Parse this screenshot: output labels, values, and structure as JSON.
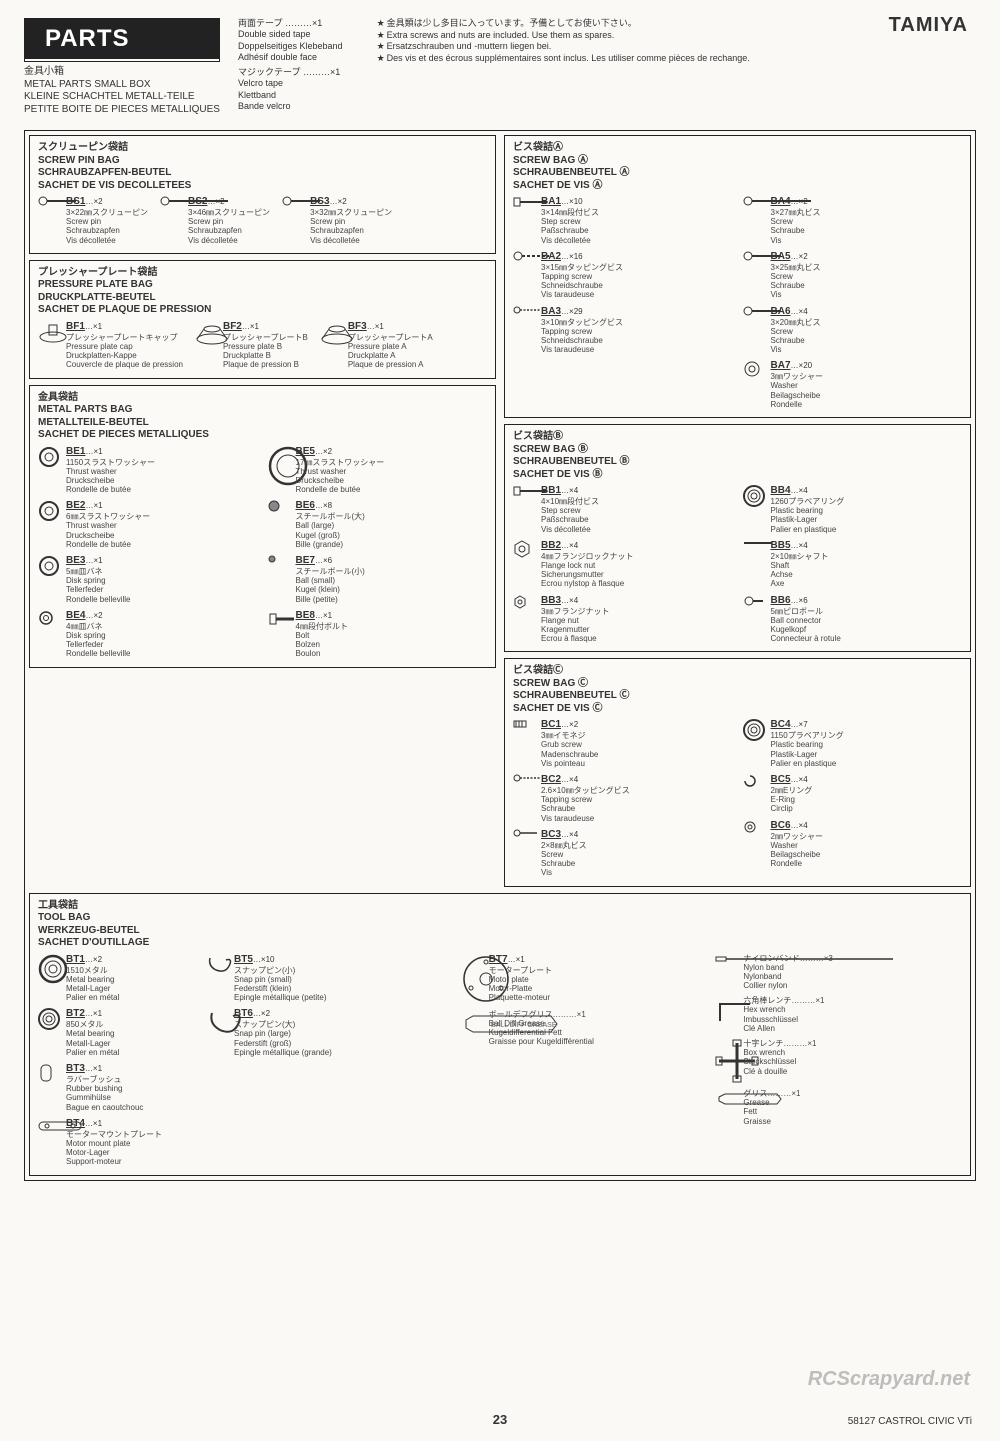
{
  "brand": "TAMIYA",
  "parts_badge": "PARTS",
  "tape": [
    {
      "jp": "両面テープ ………×1",
      "lines": [
        "Double sided tape",
        "Doppelseitiges Klebeband",
        "Adhésif double face"
      ]
    },
    {
      "jp": "マジックテープ ………×1",
      "lines": [
        "Velcro tape",
        "Klettband",
        "Bande velcro"
      ]
    }
  ],
  "notes": [
    "金具類は少し多目に入っています。予備としてお使い下さい。",
    "Extra screws and nuts are included. Use them as spares.",
    "Ersatzschrauben und -muttern liegen bei.",
    "Des vis et des écrous supplémentaires sont inclus. Les utiliser comme pièces de rechange."
  ],
  "small_box": {
    "jp": "金具小箱",
    "lines": [
      "METAL PARTS SMALL BOX",
      "KLEINE SCHACHTEL METALL-TEILE",
      "PETITE BOITE DE PIECES METALLIQUES"
    ]
  },
  "panels": {
    "screwpin": {
      "title_jp": "スクリューピン袋詰",
      "titles": [
        "SCREW PIN BAG",
        "SCHRAUBZAPFEN-BEUTEL",
        "SACHET DE VIS DECOLLETEES"
      ],
      "parts": [
        {
          "code": "BS1",
          "qty": "×2",
          "jp": "3×22㎜スクリューピン",
          "lines": [
            "Screw pin",
            "Schraubzapfen",
            "Vis décolletée"
          ],
          "icon": "screw"
        },
        {
          "code": "BS2",
          "qty": "×2",
          "jp": "3×46㎜スクリューピン",
          "lines": [
            "Screw pin",
            "Schraubzapfen",
            "Vis décolletée"
          ],
          "icon": "screw-long"
        },
        {
          "code": "BS3",
          "qty": "×2",
          "jp": "3×32㎜スクリューピン",
          "lines": [
            "Screw pin",
            "Schraubzapfen",
            "Vis décolletée"
          ],
          "icon": "screw"
        }
      ]
    },
    "pressure": {
      "title_jp": "プレッシャープレート袋詰",
      "titles": [
        "PRESSURE PLATE BAG",
        "DRUCKPLATTE-BEUTEL",
        "SACHET DE PLAQUE DE PRESSION"
      ],
      "parts": [
        {
          "code": "BF1",
          "qty": "×1",
          "jp": "プレッシャープレートキャップ",
          "lines": [
            "Pressure plate cap",
            "Druckplatten-Kappe",
            "Couvercle de plaque de pression"
          ],
          "icon": "cap"
        },
        {
          "code": "BF2",
          "qty": "×1",
          "jp": "プレッシャープレートB",
          "lines": [
            "Pressure plate B",
            "Druckplatte B",
            "Plaque de pression B"
          ],
          "icon": "plate"
        },
        {
          "code": "BF3",
          "qty": "×1",
          "jp": "プレッシャープレートA",
          "lines": [
            "Pressure plate A",
            "Druckplatte A",
            "Plaque de pression A"
          ],
          "icon": "plate"
        }
      ]
    },
    "metal": {
      "title_jp": "金具袋詰",
      "titles": [
        "METAL PARTS BAG",
        "METALLTEILE-BEUTEL",
        "SACHET DE PIECES METALLIQUES"
      ],
      "parts_left": [
        {
          "code": "BE1",
          "qty": "×1",
          "jp": "1150スラストワッシャー",
          "lines": [
            "Thrust washer",
            "Druckscheibe",
            "Rondelle de butée"
          ],
          "icon": "ring"
        },
        {
          "code": "BE2",
          "qty": "×1",
          "jp": "6㎜スラストワッシャー",
          "lines": [
            "Thrust washer",
            "Druckscheibe",
            "Rondelle de butée"
          ],
          "icon": "ring"
        },
        {
          "code": "BE3",
          "qty": "×1",
          "jp": "5㎜皿バネ",
          "lines": [
            "Disk spring",
            "Tellerfeder",
            "Rondelle belleville"
          ],
          "icon": "ring"
        },
        {
          "code": "BE4",
          "qty": "×2",
          "jp": "4㎜皿バネ",
          "lines": [
            "Disk spring",
            "Tellerfeder",
            "Rondelle belleville"
          ],
          "icon": "ring-small"
        }
      ],
      "parts_right": [
        {
          "code": "BE5",
          "qty": "×2",
          "jp": "17㎜スラストワッシャー",
          "lines": [
            "Thrust washer",
            "Druckscheibe",
            "Rondelle de butée"
          ],
          "icon": "ring-big"
        },
        {
          "code": "BE6",
          "qty": "×8",
          "jp": "スチールボール(大)",
          "lines": [
            "Ball (large)",
            "Kugel (groß)",
            "Bille (grande)"
          ],
          "icon": "ball"
        },
        {
          "code": "BE7",
          "qty": "×6",
          "jp": "スチールボール(小)",
          "lines": [
            "Ball (small)",
            "Kugel (klein)",
            "Bille (petite)"
          ],
          "icon": "ball-small"
        },
        {
          "code": "BE8",
          "qty": "×1",
          "jp": "4㎜段付ボルト",
          "lines": [
            "Bolt",
            "Bolzen",
            "Boulon"
          ],
          "icon": "bolt"
        }
      ]
    },
    "screwA": {
      "title_jp": "ビス袋詰Ⓐ",
      "titles": [
        "SCREW BAG Ⓐ",
        "SCHRAUBENBEUTEL Ⓐ",
        "SACHET DE VIS Ⓐ"
      ],
      "left": [
        {
          "code": "BA1",
          "qty": "×10",
          "jp": "3×14㎜段付ビス",
          "lines": [
            "Step screw",
            "Paßschraube",
            "Vis décolletée"
          ],
          "icon": "stepscrew"
        },
        {
          "code": "BA2",
          "qty": "×16",
          "jp": "3×15㎜タッピングビス",
          "lines": [
            "Tapping screw",
            "Schneidschraube",
            "Vis taraudeuse"
          ],
          "icon": "tapscrew"
        },
        {
          "code": "BA3",
          "qty": "×29",
          "jp": "3×10㎜タッピングビス",
          "lines": [
            "Tapping screw",
            "Schneidschraube",
            "Vis taraudeuse"
          ],
          "icon": "tapscrew-s"
        }
      ],
      "right": [
        {
          "code": "BA4",
          "qty": "×2",
          "jp": "3×27㎜丸ビス",
          "lines": [
            "Screw",
            "Schraube",
            "Vis"
          ],
          "icon": "screw-long"
        },
        {
          "code": "BA5",
          "qty": "×2",
          "jp": "3×25㎜丸ビス",
          "lines": [
            "Screw",
            "Schraube",
            "Vis"
          ],
          "icon": "screw"
        },
        {
          "code": "BA6",
          "qty": "×4",
          "jp": "3×20㎜丸ビス",
          "lines": [
            "Screw",
            "Schraube",
            "Vis"
          ],
          "icon": "screw"
        },
        {
          "code": "BA7",
          "qty": "×20",
          "jp": "3㎜ワッシャー",
          "lines": [
            "Washer",
            "Beilagscheibe",
            "Rondelle"
          ],
          "icon": "washer"
        }
      ]
    },
    "screwB": {
      "title_jp": "ビス袋詰Ⓑ",
      "titles": [
        "SCREW BAG Ⓑ",
        "SCHRAUBENBEUTEL Ⓑ",
        "SACHET DE VIS Ⓑ"
      ],
      "left": [
        {
          "code": "BB1",
          "qty": "×4",
          "jp": "4×10㎜段付ビス",
          "lines": [
            "Step screw",
            "Paßschraube",
            "Vis décolletée"
          ],
          "icon": "stepscrew"
        },
        {
          "code": "BB2",
          "qty": "×4",
          "jp": "4㎜フランジロックナット",
          "lines": [
            "Flange lock nut",
            "Sicherungsmutter",
            "Ecrou nylstop à flasque"
          ],
          "icon": "nut"
        },
        {
          "code": "BB3",
          "qty": "×4",
          "jp": "3㎜フランジナット",
          "lines": [
            "Flange nut",
            "Kragenmutter",
            "Ecrou à flasque"
          ],
          "icon": "nut-s"
        }
      ],
      "right": [
        {
          "code": "BB4",
          "qty": "×4",
          "jp": "1260プラベアリング",
          "lines": [
            "Plastic bearing",
            "Plastik-Lager",
            "Palier en plastique"
          ],
          "icon": "bearing"
        },
        {
          "code": "BB5",
          "qty": "×4",
          "jp": "2×10㎜シャフト",
          "lines": [
            "Shaft",
            "Achse",
            "Axe"
          ],
          "icon": "shaft"
        },
        {
          "code": "BB6",
          "qty": "×6",
          "jp": "5㎜ピロボール",
          "lines": [
            "Ball connector",
            "Kugelkopf",
            "Connecteur à rotule"
          ],
          "icon": "ballconn"
        }
      ]
    },
    "screwC": {
      "title_jp": "ビス袋詰Ⓒ",
      "titles": [
        "SCREW BAG Ⓒ",
        "SCHRAUBENBEUTEL Ⓒ",
        "SACHET DE VIS Ⓒ"
      ],
      "left": [
        {
          "code": "BC1",
          "qty": "×2",
          "jp": "3㎜イモネジ",
          "lines": [
            "Grub screw",
            "Madenschraube",
            "Vis pointeau"
          ],
          "icon": "grub"
        },
        {
          "code": "BC2",
          "qty": "×4",
          "jp": "2.6×10㎜タッピングビス",
          "lines": [
            "Tapping screw",
            "Schraube",
            "Vis taraudeuse"
          ],
          "icon": "tapscrew-s"
        },
        {
          "code": "BC3",
          "qty": "×4",
          "jp": "2×8㎜丸ビス",
          "lines": [
            "Screw",
            "Schraube",
            "Vis"
          ],
          "icon": "screw-s"
        }
      ],
      "right": [
        {
          "code": "BC4",
          "qty": "×7",
          "jp": "1150プラベアリング",
          "lines": [
            "Plastic bearing",
            "Plastik-Lager",
            "Palier en plastique"
          ],
          "icon": "bearing"
        },
        {
          "code": "BC5",
          "qty": "×4",
          "jp": "2㎜Eリング",
          "lines": [
            "E-Ring",
            "Circlip"
          ],
          "icon": "ering"
        },
        {
          "code": "BC6",
          "qty": "×4",
          "jp": "2㎜ワッシャー",
          "lines": [
            "Washer",
            "Beilagscheibe",
            "Rondelle"
          ],
          "icon": "washer-s"
        }
      ]
    }
  },
  "tool": {
    "title_jp": "工具袋詰",
    "titles": [
      "TOOL BAG",
      "WERKZEUG-BEUTEL",
      "SACHET D'OUTILLAGE"
    ],
    "col1": [
      {
        "code": "BT1",
        "qty": "×2",
        "jp": "1510メタル",
        "lines": [
          "Metal bearing",
          "Metall-Lager",
          "Palier en métal"
        ],
        "icon": "bearing-big"
      },
      {
        "code": "BT2",
        "qty": "×1",
        "jp": "850メタル",
        "lines": [
          "Metal bearing",
          "Metall-Lager",
          "Palier en métal"
        ],
        "icon": "bearing"
      },
      {
        "code": "BT3",
        "qty": "×1",
        "jp": "ラバーブッシュ",
        "lines": [
          "Rubber bushing",
          "Gummihülse",
          "Bague en caoutchouc"
        ],
        "icon": "bushing"
      },
      {
        "code": "BT4",
        "qty": "×1",
        "jp": "モーターマウントプレート",
        "lines": [
          "Motor mount plate",
          "Motor-Lager",
          "Support-moteur"
        ],
        "icon": "mount"
      }
    ],
    "col2": [
      {
        "code": "BT5",
        "qty": "×10",
        "jp": "スナップピン(小)",
        "lines": [
          "Snap pin (small)",
          "Federstift (klein)",
          "Epingle métallique (petite)"
        ],
        "icon": "snappin"
      },
      {
        "code": "BT6",
        "qty": "×2",
        "jp": "スナップピン(大)",
        "lines": [
          "Snap pin (large)",
          "Federstift (groß)",
          "Epingle métallique (grande)"
        ],
        "icon": "snappin-big"
      }
    ],
    "col3": [
      {
        "code": "BT7",
        "qty": "×1",
        "jp": "モータープレート",
        "lines": [
          "Motor plate",
          "Motor-Platte",
          "Plaquette-moteur"
        ],
        "icon": "motorplate"
      },
      {
        "code": "",
        "qty": "",
        "jp": "ボールデフグリス………×1",
        "lines": [
          "Ball Diff Grease",
          "Kugeldifferential Fett",
          "Graisse pour Kugeldifférential"
        ],
        "icon": "tube",
        "tube_label": "BALL DIFF GREASE"
      }
    ],
    "col4": [
      {
        "code": "",
        "qty": "",
        "jp": "ナイロンバンド………×3",
        "lines": [
          "Nylon band",
          "Nylonband",
          "Collier nylon"
        ],
        "icon": "ziptie"
      },
      {
        "code": "",
        "qty": "",
        "jp": "六角棒レンチ………×1",
        "lines": [
          "Hex wrench",
          "Imbusschlüssel",
          "Clé Allen"
        ],
        "icon": "hex"
      },
      {
        "code": "",
        "qty": "",
        "jp": "十字レンチ………×1",
        "lines": [
          "Box wrench",
          "Steckschlüssel",
          "Clé à douille"
        ],
        "icon": "boxwrench"
      },
      {
        "code": "",
        "qty": "",
        "jp": "グリス………×1",
        "lines": [
          "Grease",
          "Fett",
          "Graisse"
        ],
        "icon": "tube-s"
      }
    ]
  },
  "page_number": "23",
  "footer_code": "58127 CASTROL CIVIC VTi",
  "watermark": "RCScrapyard.net"
}
